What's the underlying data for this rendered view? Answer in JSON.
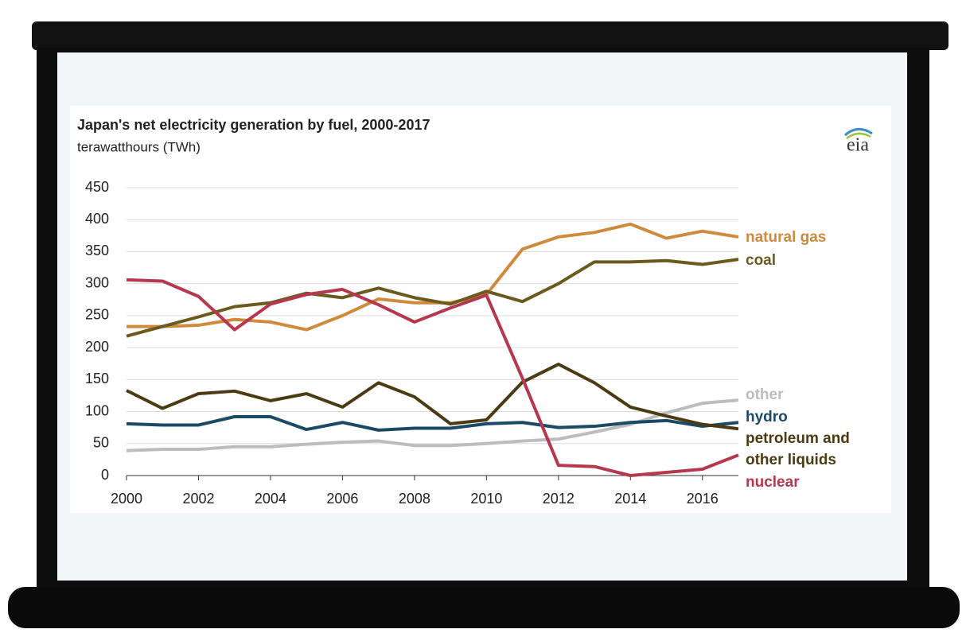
{
  "chart_data": {
    "type": "line",
    "title": "Japan's net electricity generation by fuel, 2000-2017",
    "subtitle": "terawatthours (TWh)",
    "logo": "eia",
    "x": [
      2000,
      2001,
      2002,
      2003,
      2004,
      2005,
      2006,
      2007,
      2008,
      2009,
      2010,
      2011,
      2012,
      2013,
      2014,
      2015,
      2016,
      2017
    ],
    "xlim": [
      2000,
      2017
    ],
    "xticks": [
      2000,
      2002,
      2004,
      2006,
      2008,
      2010,
      2012,
      2014,
      2016
    ],
    "ylim": [
      0,
      450
    ],
    "yticks": [
      0,
      50,
      100,
      150,
      200,
      250,
      300,
      350,
      400,
      450
    ],
    "grid": true,
    "series": [
      {
        "name": "natural gas",
        "color": "#d08a3e",
        "values": [
          233,
          233,
          235,
          244,
          240,
          228,
          250,
          276,
          270,
          270,
          283,
          354,
          373,
          380,
          393,
          371,
          382,
          373
        ]
      },
      {
        "name": "coal",
        "color": "#6b5a1e",
        "values": [
          218,
          233,
          248,
          264,
          270,
          285,
          278,
          293,
          278,
          268,
          288,
          272,
          300,
          334,
          334,
          336,
          330,
          338
        ]
      },
      {
        "name": "other",
        "color": "#bdbdbd",
        "values": [
          39,
          41,
          41,
          45,
          45,
          49,
          52,
          54,
          47,
          47,
          50,
          54,
          57,
          68,
          80,
          98,
          113,
          118
        ]
      },
      {
        "name": "hydro",
        "color": "#1a4a66",
        "values": [
          81,
          79,
          79,
          92,
          92,
          72,
          83,
          71,
          74,
          74,
          81,
          83,
          75,
          77,
          83,
          86,
          77,
          83
        ]
      },
      {
        "name": "petroleum and other liquids",
        "color": "#4a3b12",
        "values": [
          133,
          105,
          128,
          132,
          117,
          128,
          107,
          145,
          123,
          81,
          87,
          146,
          174,
          145,
          107,
          93,
          80,
          73
        ]
      },
      {
        "name": "nuclear",
        "color": "#b5384f",
        "values": [
          306,
          304,
          280,
          228,
          268,
          283,
          291,
          267,
          240,
          262,
          282,
          152,
          16,
          14,
          0,
          5,
          10,
          32
        ]
      }
    ]
  }
}
